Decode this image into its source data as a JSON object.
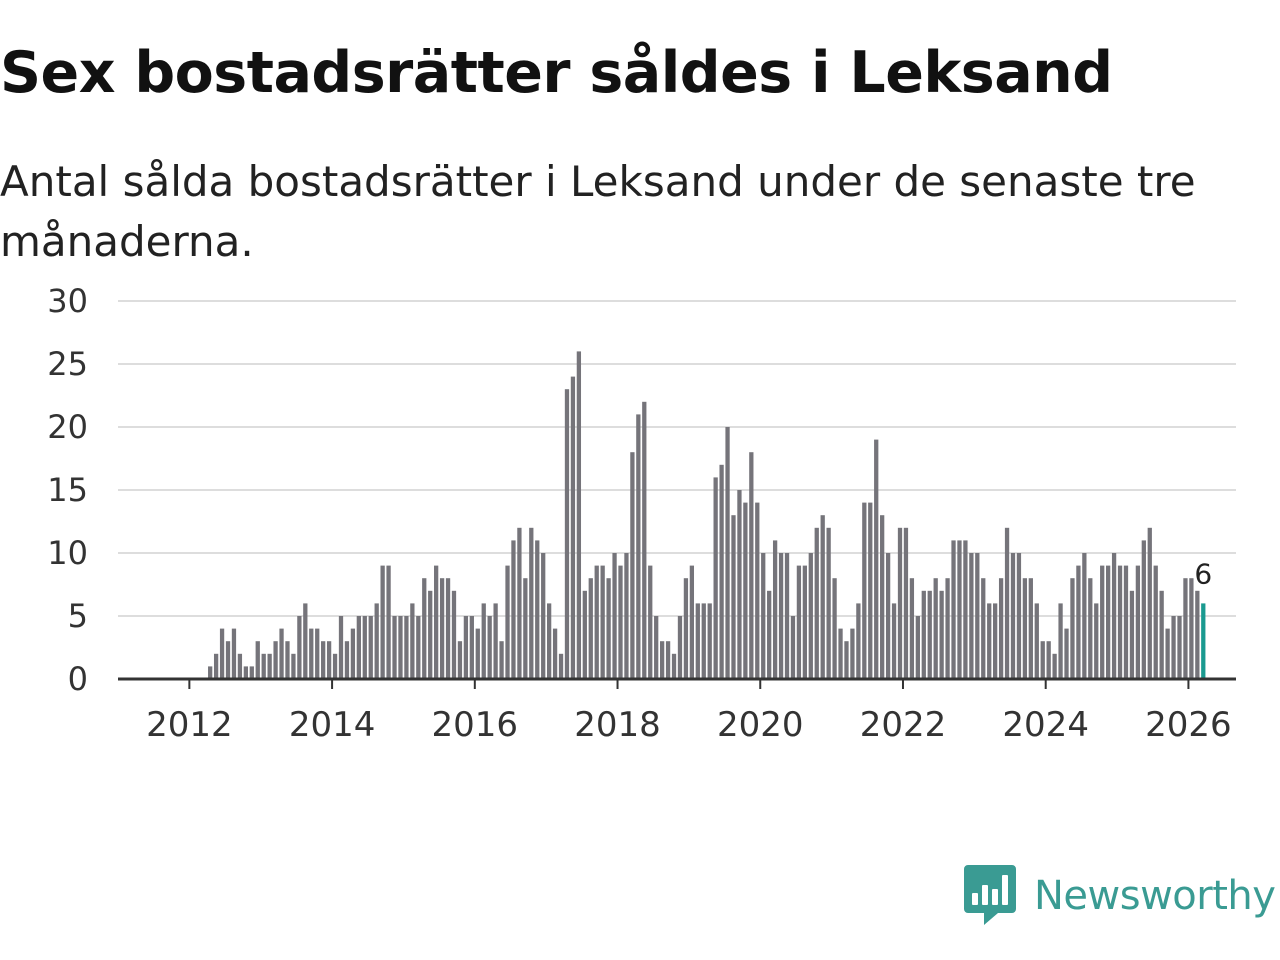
{
  "title": "Sex bostadsrätter såldes i Leksand",
  "subtitle": "Antal sålda bostadsrätter i Leksand under de senaste tre månaderna.",
  "brand": {
    "name": "Newsworthy",
    "icon": "newsworthy-logo-icon",
    "color": "#3a9b93"
  },
  "colors": {
    "bar": "#75747a",
    "highlight": "#1a9a90",
    "grid": "#dddddd",
    "axis": "#333333"
  },
  "chart_data": {
    "type": "bar",
    "title": "Sex bostadsrätter såldes i Leksand",
    "xlabel": "",
    "ylabel": "",
    "ylim": [
      0,
      30
    ],
    "yticks": [
      0,
      5,
      10,
      15,
      20,
      25,
      30
    ],
    "grid": true,
    "x_start": "2011-01",
    "xlim": [
      "2011-01",
      "2026-09"
    ],
    "xtick_labels": [
      "2012",
      "2014",
      "2016",
      "2018",
      "2020",
      "2022",
      "2024",
      "2026"
    ],
    "highlight_last": true,
    "last_label": "6",
    "series": [
      {
        "name": "Sålda bostadsrätter",
        "values": [
          0,
          0,
          0,
          0,
          0,
          0,
          0,
          0,
          0,
          0,
          0,
          0,
          0,
          0,
          0,
          1,
          2,
          4,
          3,
          4,
          2,
          1,
          1,
          3,
          2,
          2,
          3,
          4,
          3,
          2,
          5,
          6,
          4,
          4,
          3,
          3,
          2,
          5,
          3,
          4,
          5,
          5,
          5,
          6,
          9,
          9,
          5,
          5,
          5,
          6,
          5,
          8,
          7,
          9,
          8,
          8,
          7,
          3,
          5,
          5,
          4,
          6,
          5,
          6,
          3,
          9,
          11,
          12,
          8,
          12,
          11,
          10,
          6,
          4,
          2,
          23,
          24,
          26,
          7,
          8,
          9,
          9,
          8,
          10,
          9,
          10,
          18,
          21,
          22,
          9,
          5,
          3,
          3,
          2,
          5,
          8,
          9,
          6,
          6,
          6,
          16,
          17,
          20,
          13,
          15,
          14,
          18,
          14,
          10,
          7,
          11,
          10,
          10,
          5,
          9,
          9,
          10,
          12,
          13,
          12,
          8,
          4,
          3,
          4,
          6,
          14,
          14,
          19,
          13,
          10,
          6,
          12,
          12,
          8,
          5,
          7,
          7,
          8,
          7,
          8,
          11,
          11,
          11,
          10,
          10,
          8,
          6,
          6,
          8,
          12,
          10,
          10,
          8,
          8,
          6,
          3,
          3,
          2,
          6,
          4,
          8,
          9,
          10,
          8,
          6,
          9,
          9,
          10,
          9,
          9,
          7,
          9,
          11,
          12,
          9,
          7,
          4,
          5,
          5,
          8,
          8,
          7,
          6
        ]
      }
    ]
  }
}
